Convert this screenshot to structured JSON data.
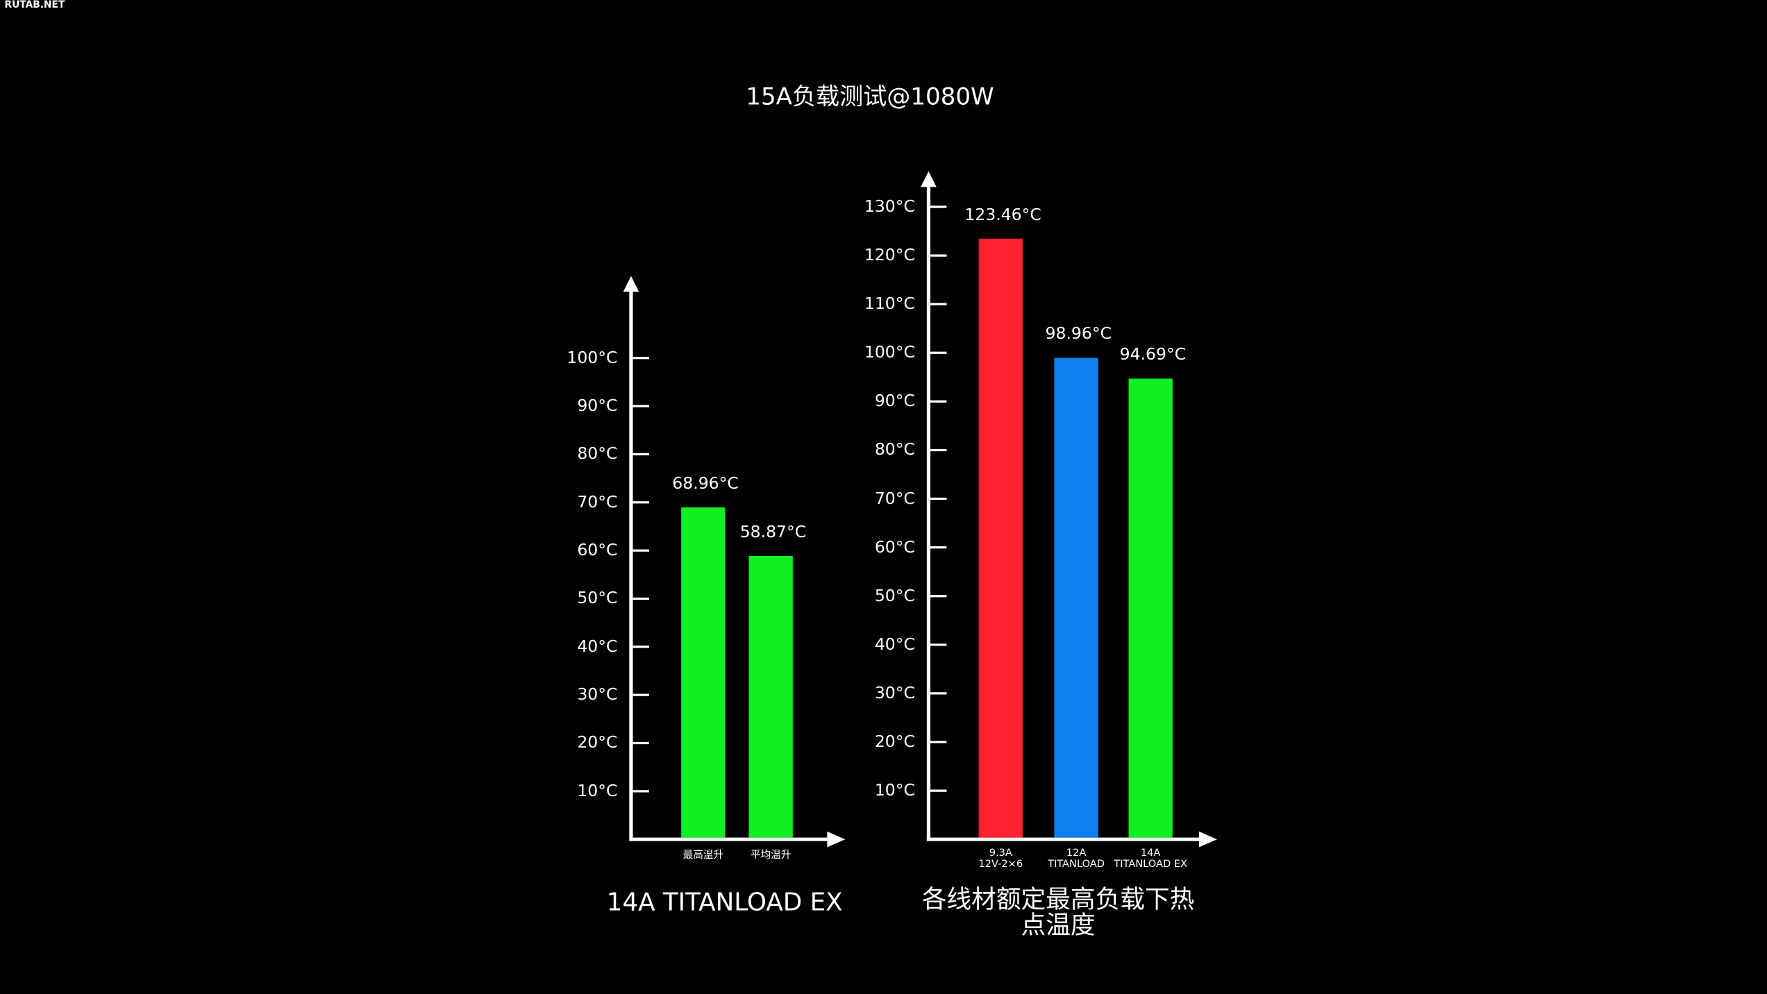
{
  "watermark": "RUTAB.NET",
  "title": "15A负载测试@1080W",
  "chart_data": [
    {
      "type": "bar",
      "title": "14A TITANLOAD EX",
      "categories": [
        "最高温升",
        "平均温升"
      ],
      "values": [
        68.96,
        58.87
      ],
      "value_labels": [
        "68.96°C",
        "58.87°C"
      ],
      "color": "#11ee22",
      "ylim": [
        0,
        110
      ],
      "yticks": [
        {
          "value": 10,
          "label": "10°C"
        },
        {
          "value": 20,
          "label": "20°C"
        },
        {
          "value": 30,
          "label": "30°C"
        },
        {
          "value": 40,
          "label": "40°C"
        },
        {
          "value": 50,
          "label": "50°C"
        },
        {
          "value": 60,
          "label": "60°C"
        },
        {
          "value": 70,
          "label": "70°C"
        },
        {
          "value": 80,
          "label": "80°C"
        },
        {
          "value": 90,
          "label": "90°C"
        },
        {
          "value": 100,
          "label": "100°C"
        }
      ]
    },
    {
      "type": "bar",
      "title": "各线材额定最高负载下热点温度",
      "categories": [
        "9.3A\n12V-2×6",
        "12A\nTITANLOAD",
        "14A\nTITANLOAD EX"
      ],
      "values": [
        123.46,
        98.96,
        94.69
      ],
      "value_labels": [
        "123.46°C",
        "98.96°C",
        "94.69°C"
      ],
      "colors": [
        "#ff2233",
        "#0f7ff0",
        "#11ee22"
      ],
      "ylim": [
        0,
        135
      ],
      "yticks": [
        {
          "value": 10,
          "label": "10°C"
        },
        {
          "value": 20,
          "label": "20°C"
        },
        {
          "value": 30,
          "label": "30°C"
        },
        {
          "value": 40,
          "label": "40°C"
        },
        {
          "value": 50,
          "label": "50°C"
        },
        {
          "value": 60,
          "label": "60°C"
        },
        {
          "value": 70,
          "label": "70°C"
        },
        {
          "value": 80,
          "label": "80°C"
        },
        {
          "value": 90,
          "label": "90°C"
        },
        {
          "value": 100,
          "label": "100°C"
        },
        {
          "value": 110,
          "label": "110°C"
        },
        {
          "value": 120,
          "label": "120°C"
        },
        {
          "value": 130,
          "label": "130°C"
        }
      ]
    }
  ]
}
